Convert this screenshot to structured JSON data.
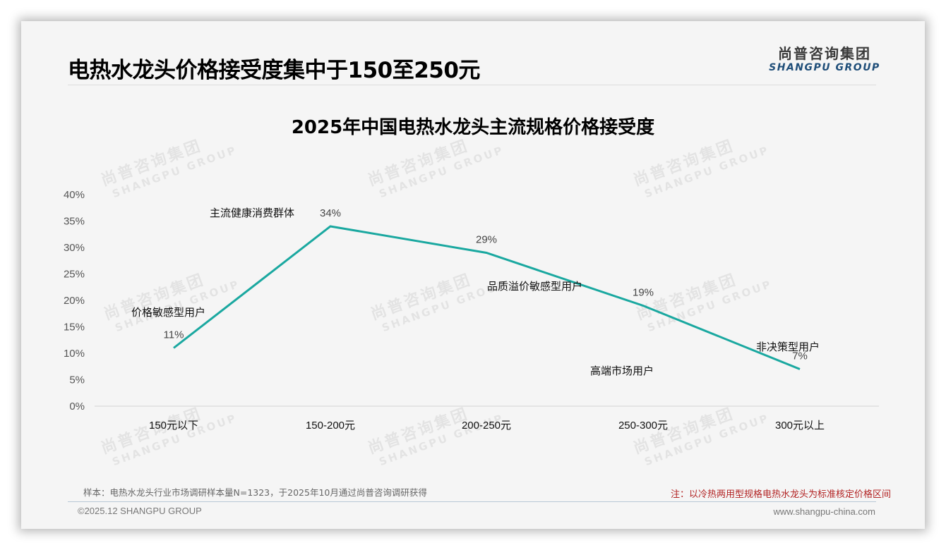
{
  "header": {
    "title": "电热水龙头价格接受度集中于150至250元",
    "logo_cn": "尚普咨询集团",
    "logo_en": "SHANGPU GROUP"
  },
  "watermark": {
    "cn": "尚普咨询集团",
    "en": "SHANGPU GROUP"
  },
  "colors": {
    "line": "#1aa8a0",
    "note_red": "#b22222",
    "logo_blue": "#1f4e79"
  },
  "chart_data": {
    "type": "line",
    "title": "2025年中国电热水龙头主流规格价格接受度",
    "xlabel": "",
    "ylabel": "",
    "categories": [
      "150元以下",
      "150-200元",
      "200-250元",
      "250-300元",
      "300元以上"
    ],
    "values": [
      11,
      34,
      29,
      19,
      7
    ],
    "value_labels": [
      "11%",
      "34%",
      "29%",
      "19%",
      "7%"
    ],
    "y_ticks": [
      "0%",
      "5%",
      "10%",
      "15%",
      "20%",
      "25%",
      "30%",
      "35%",
      "40%"
    ],
    "ylim": [
      0,
      40
    ],
    "grid": false,
    "legend": "none",
    "annotations": [
      {
        "text": "价格敏感型用户",
        "category": "150元以下"
      },
      {
        "text": "主流健康消费群体",
        "category": "150-200元"
      },
      {
        "text": "品质溢价敏感型用户",
        "category": "200-250元"
      },
      {
        "text": "高端市场用户",
        "category": "250-300元"
      },
      {
        "text": "非决策型用户",
        "category": "300元以上"
      }
    ]
  },
  "footer": {
    "sample_note": "样本：电热水龙头行业市场调研样本量N=1323，于2025年10月通过尚普咨询调研获得",
    "right_note": "注：以冷热两用型规格电热水龙头为标准核定价格区间",
    "copyright": "©2025.12 SHANGPU GROUP",
    "website": "www.shangpu-china.com"
  }
}
